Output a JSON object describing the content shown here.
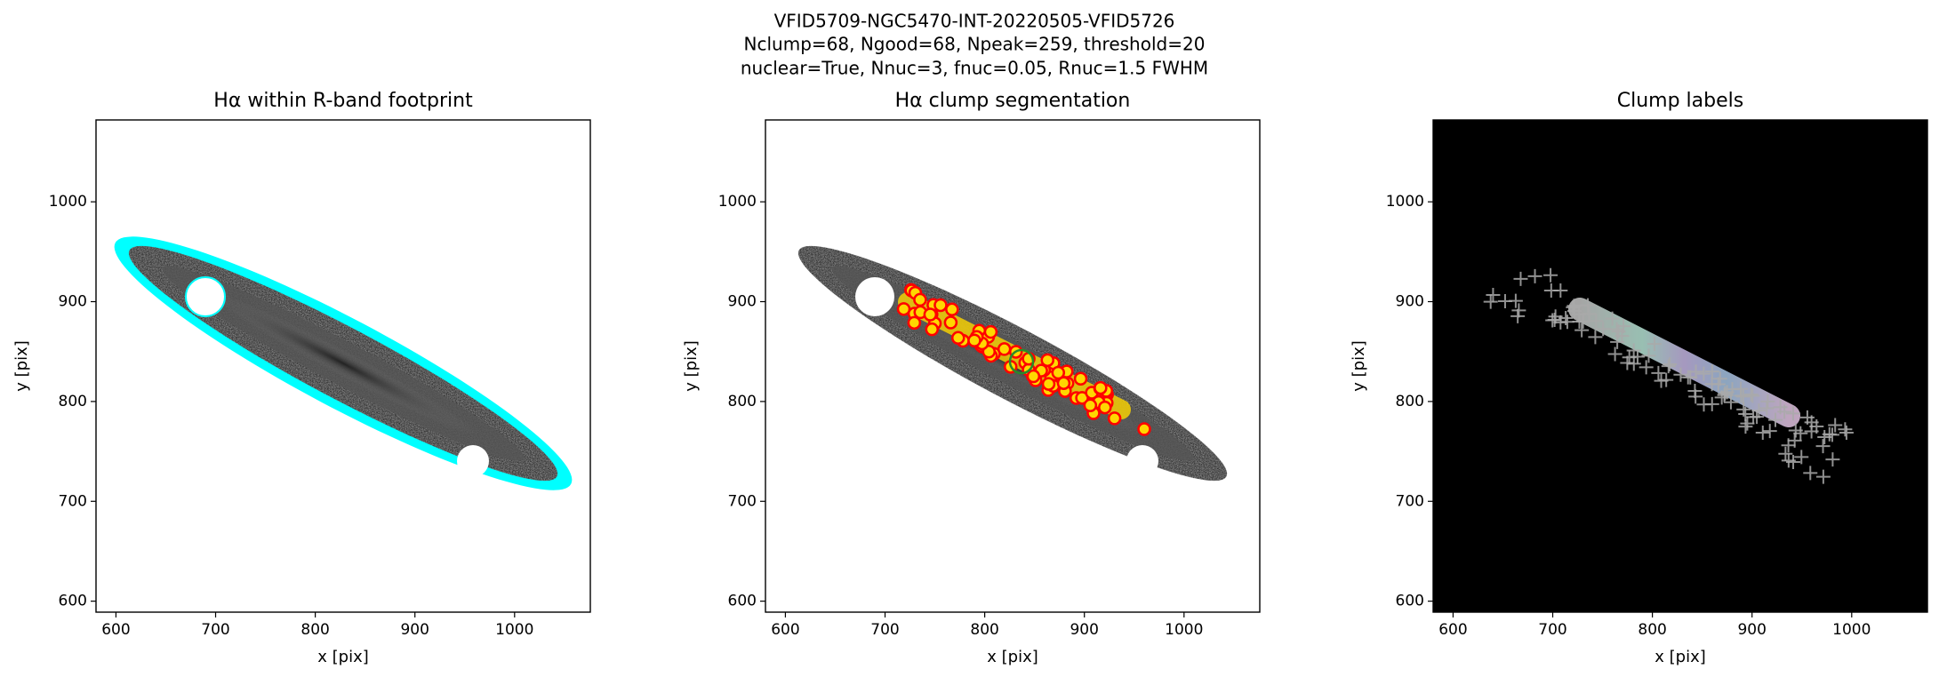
{
  "title_lines": [
    "VFID5709-NGC5470-INT-20220505-VFID5726",
    "Nclump=68, Ngood=68, Npeak=259, threshold=20",
    "nuclear=True, Nnuc=3, fnuc=0.05, Rnuc=1.5 FWHM"
  ],
  "chart_data": [
    {
      "type": "image",
      "title": "Hα within R-band footprint",
      "xlabel": "x [pix]",
      "ylabel": "y [pix]",
      "background": "#ffffff",
      "xlim": [
        580,
        1076
      ],
      "ylim": [
        589,
        1082
      ],
      "xticks": [
        600,
        700,
        800,
        900,
        1000
      ],
      "yticks": [
        600,
        700,
        800,
        900,
        1000
      ]
    },
    {
      "type": "image",
      "title": "Hα clump segmentation",
      "xlabel": "x [pix]",
      "ylabel": "y [pix]",
      "background": "#ffffff",
      "xlim": [
        580,
        1076
      ],
      "ylim": [
        589,
        1082
      ],
      "xticks": [
        600,
        700,
        800,
        900,
        1000
      ],
      "yticks": [
        600,
        700,
        800,
        900,
        1000
      ]
    },
    {
      "type": "image",
      "title": "Clump labels",
      "xlabel": "x [pix]",
      "ylabel": "y [pix]",
      "background": "#000000",
      "xlim": [
        580,
        1076
      ],
      "ylim": [
        589,
        1082
      ],
      "xticks": [
        600,
        700,
        800,
        900,
        1000
      ],
      "yticks": [
        600,
        700,
        800,
        900,
        1000
      ]
    }
  ]
}
